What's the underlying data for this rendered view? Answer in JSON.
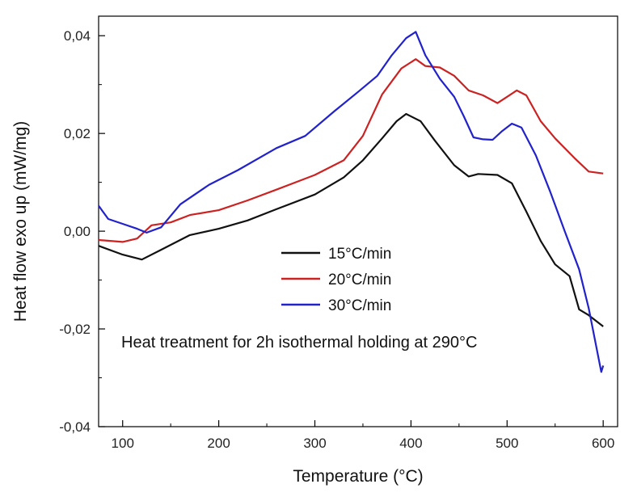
{
  "chart_data": {
    "type": "line",
    "title": "",
    "xlabel": "Temperature (°C)",
    "ylabel": "Heat flow exo up (mW/mg)",
    "xlim": [
      75,
      615
    ],
    "ylim": [
      -0.04,
      0.044
    ],
    "x_ticks": [
      100,
      200,
      300,
      400,
      500,
      600
    ],
    "x_tick_labels": [
      "100",
      "200",
      "300",
      "400",
      "500",
      "600"
    ],
    "y_ticks": [
      -0.04,
      -0.02,
      0.0,
      0.02,
      0.04
    ],
    "y_tick_labels": [
      "-0,04",
      "-0,02",
      "0,00",
      "0,02",
      "0,04"
    ],
    "grid": false,
    "legend_position": "center",
    "annotation": "Heat treatment for 2h isothermal holding at 290°C",
    "series": [
      {
        "name": "15°C/min",
        "color": "#111111",
        "x": [
          75,
          100,
          120,
          140,
          170,
          200,
          230,
          260,
          300,
          330,
          350,
          370,
          385,
          395,
          410,
          425,
          445,
          460,
          470,
          490,
          505,
          520,
          535,
          550,
          565,
          575,
          585,
          600
        ],
        "y": [
          -0.003,
          -0.0048,
          -0.0058,
          -0.0038,
          -0.0008,
          0.0005,
          0.0022,
          0.0045,
          0.0075,
          0.011,
          0.0145,
          0.019,
          0.0225,
          0.024,
          0.0225,
          0.0185,
          0.0135,
          0.0112,
          0.0117,
          0.0115,
          0.0098,
          0.004,
          -0.002,
          -0.0068,
          -0.0092,
          -0.016,
          -0.0172,
          -0.0195
        ]
      },
      {
        "name": "20°C/min",
        "color": "#cc2222",
        "x": [
          75,
          100,
          115,
          130,
          150,
          170,
          200,
          230,
          260,
          300,
          330,
          350,
          370,
          390,
          405,
          415,
          430,
          445,
          460,
          475,
          490,
          500,
          510,
          520,
          535,
          550,
          570,
          585,
          600
        ],
        "y": [
          -0.0018,
          -0.0022,
          -0.0015,
          0.0012,
          0.0018,
          0.0033,
          0.0043,
          0.0063,
          0.0085,
          0.0115,
          0.0145,
          0.0195,
          0.028,
          0.0333,
          0.0352,
          0.0338,
          0.0335,
          0.0318,
          0.0288,
          0.0278,
          0.0262,
          0.0275,
          0.0288,
          0.0278,
          0.0225,
          0.019,
          0.015,
          0.0122,
          0.0118
        ]
      },
      {
        "name": "30°C/min",
        "color": "#2222cc",
        "x": [
          75,
          85,
          100,
          115,
          125,
          140,
          160,
          190,
          220,
          260,
          290,
          320,
          345,
          365,
          380,
          395,
          405,
          415,
          430,
          445,
          455,
          465,
          475,
          485,
          495,
          505,
          515,
          530,
          545,
          560,
          575,
          585,
          598,
          600
        ],
        "y": [
          0.0052,
          0.0025,
          0.0015,
          0.0005,
          -0.0003,
          0.0008,
          0.0055,
          0.0095,
          0.0125,
          0.017,
          0.0195,
          0.0245,
          0.0285,
          0.0318,
          0.036,
          0.0395,
          0.0408,
          0.036,
          0.0312,
          0.0275,
          0.0235,
          0.0192,
          0.0188,
          0.0187,
          0.0205,
          0.022,
          0.0212,
          0.0155,
          0.008,
          0.0,
          -0.0078,
          -0.0158,
          -0.0288,
          -0.0275
        ]
      }
    ]
  }
}
